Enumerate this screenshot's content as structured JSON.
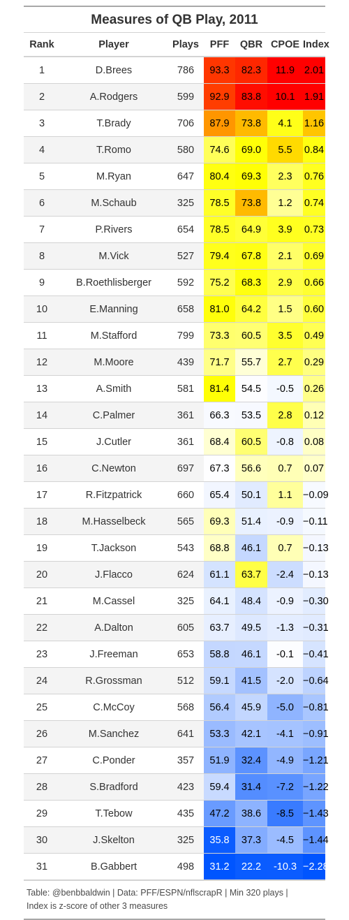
{
  "chart_data": {
    "type": "table",
    "title": "Measures of QB Play, 2011",
    "columns": [
      "Rank",
      "Player",
      "Plays",
      "PFF",
      "QBR",
      "CPOE",
      "Index"
    ],
    "rows": [
      {
        "rank": "1",
        "player": "D.Brees",
        "plays": "786",
        "pff": "93.3",
        "qbr": "82.3",
        "cpoe": "11.9",
        "index": "2.01"
      },
      {
        "rank": "2",
        "player": "A.Rodgers",
        "plays": "599",
        "pff": "92.9",
        "qbr": "83.8",
        "cpoe": "10.1",
        "index": "1.91"
      },
      {
        "rank": "3",
        "player": "T.Brady",
        "plays": "706",
        "pff": "87.9",
        "qbr": "73.8",
        "cpoe": "4.1",
        "index": "1.16"
      },
      {
        "rank": "4",
        "player": "T.Romo",
        "plays": "580",
        "pff": "74.6",
        "qbr": "69.0",
        "cpoe": "5.5",
        "index": "0.84"
      },
      {
        "rank": "5",
        "player": "M.Ryan",
        "plays": "647",
        "pff": "80.4",
        "qbr": "69.3",
        "cpoe": "2.3",
        "index": "0.76"
      },
      {
        "rank": "6",
        "player": "M.Schaub",
        "plays": "325",
        "pff": "78.5",
        "qbr": "73.8",
        "cpoe": "1.2",
        "index": "0.74"
      },
      {
        "rank": "7",
        "player": "P.Rivers",
        "plays": "654",
        "pff": "78.5",
        "qbr": "64.9",
        "cpoe": "3.9",
        "index": "0.73"
      },
      {
        "rank": "8",
        "player": "M.Vick",
        "plays": "527",
        "pff": "79.4",
        "qbr": "67.8",
        "cpoe": "2.1",
        "index": "0.69"
      },
      {
        "rank": "9",
        "player": "B.Roethlisberger",
        "plays": "592",
        "pff": "75.2",
        "qbr": "68.3",
        "cpoe": "2.9",
        "index": "0.66"
      },
      {
        "rank": "10",
        "player": "E.Manning",
        "plays": "658",
        "pff": "81.0",
        "qbr": "64.2",
        "cpoe": "1.5",
        "index": "0.60"
      },
      {
        "rank": "11",
        "player": "M.Stafford",
        "plays": "799",
        "pff": "73.3",
        "qbr": "60.5",
        "cpoe": "3.5",
        "index": "0.49"
      },
      {
        "rank": "12",
        "player": "M.Moore",
        "plays": "439",
        "pff": "71.7",
        "qbr": "55.7",
        "cpoe": "2.7",
        "index": "0.29"
      },
      {
        "rank": "13",
        "player": "A.Smith",
        "plays": "581",
        "pff": "81.4",
        "qbr": "54.5",
        "cpoe": "-0.5",
        "index": "0.26"
      },
      {
        "rank": "14",
        "player": "C.Palmer",
        "plays": "361",
        "pff": "66.3",
        "qbr": "53.5",
        "cpoe": "2.8",
        "index": "0.12"
      },
      {
        "rank": "15",
        "player": "J.Cutler",
        "plays": "361",
        "pff": "68.4",
        "qbr": "60.5",
        "cpoe": "-0.8",
        "index": "0.08"
      },
      {
        "rank": "16",
        "player": "C.Newton",
        "plays": "697",
        "pff": "67.3",
        "qbr": "56.6",
        "cpoe": "0.7",
        "index": "0.07"
      },
      {
        "rank": "17",
        "player": "R.Fitzpatrick",
        "plays": "660",
        "pff": "65.4",
        "qbr": "50.1",
        "cpoe": "1.1",
        "index": "−0.09"
      },
      {
        "rank": "18",
        "player": "M.Hasselbeck",
        "plays": "565",
        "pff": "69.3",
        "qbr": "51.4",
        "cpoe": "-0.9",
        "index": "−0.11"
      },
      {
        "rank": "19",
        "player": "T.Jackson",
        "plays": "543",
        "pff": "68.8",
        "qbr": "46.1",
        "cpoe": "0.7",
        "index": "−0.13"
      },
      {
        "rank": "20",
        "player": "J.Flacco",
        "plays": "624",
        "pff": "61.1",
        "qbr": "63.7",
        "cpoe": "-2.4",
        "index": "−0.13"
      },
      {
        "rank": "21",
        "player": "M.Cassel",
        "plays": "325",
        "pff": "64.1",
        "qbr": "48.4",
        "cpoe": "-0.9",
        "index": "−0.30"
      },
      {
        "rank": "22",
        "player": "A.Dalton",
        "plays": "605",
        "pff": "63.7",
        "qbr": "49.5",
        "cpoe": "-1.3",
        "index": "−0.31"
      },
      {
        "rank": "23",
        "player": "J.Freeman",
        "plays": "653",
        "pff": "58.8",
        "qbr": "46.1",
        "cpoe": "-0.1",
        "index": "−0.41"
      },
      {
        "rank": "24",
        "player": "R.Grossman",
        "plays": "512",
        "pff": "59.1",
        "qbr": "41.5",
        "cpoe": "-2.0",
        "index": "−0.64"
      },
      {
        "rank": "25",
        "player": "C.McCoy",
        "plays": "568",
        "pff": "56.4",
        "qbr": "45.9",
        "cpoe": "-5.0",
        "index": "−0.81"
      },
      {
        "rank": "26",
        "player": "M.Sanchez",
        "plays": "641",
        "pff": "53.3",
        "qbr": "42.1",
        "cpoe": "-4.1",
        "index": "−0.91"
      },
      {
        "rank": "27",
        "player": "C.Ponder",
        "plays": "357",
        "pff": "51.9",
        "qbr": "32.4",
        "cpoe": "-4.9",
        "index": "−1.21"
      },
      {
        "rank": "28",
        "player": "S.Bradford",
        "plays": "423",
        "pff": "59.4",
        "qbr": "31.4",
        "cpoe": "-7.2",
        "index": "−1.22"
      },
      {
        "rank": "29",
        "player": "T.Tebow",
        "plays": "435",
        "pff": "47.2",
        "qbr": "38.6",
        "cpoe": "-8.5",
        "index": "−1.43"
      },
      {
        "rank": "30",
        "player": "J.Skelton",
        "plays": "325",
        "pff": "35.8",
        "qbr": "37.3",
        "cpoe": "-4.5",
        "index": "−1.44"
      },
      {
        "rank": "31",
        "player": "B.Gabbert",
        "plays": "498",
        "pff": "31.2",
        "qbr": "22.2",
        "cpoe": "-10.3",
        "index": "−2.28"
      }
    ],
    "color_scale": {
      "high_color": "#ff0000",
      "mid_high_color": "#ffff00",
      "center_color": "#ffffff",
      "low_color": "#0055ff"
    }
  },
  "footer": {
    "line1": "Table: @benbbaldwin | Data: PFF/ESPN/nflscrapR | Min 320 plays |",
    "line2": "Index is z-score of other 3 measures"
  }
}
